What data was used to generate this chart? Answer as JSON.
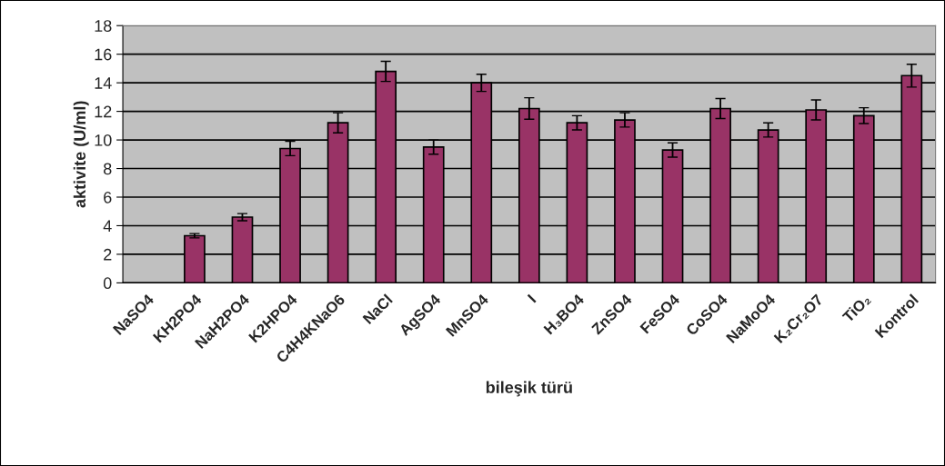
{
  "chart_data": {
    "type": "bar",
    "xlabel": "bileşik türü",
    "ylabel": "aktivite (U/ml)",
    "categories": [
      "NaSO4",
      "KH2PO4",
      "NaH2PO4",
      "K2HPO4",
      "C4H4KNaO6",
      "NaCl",
      "AgSO4",
      "MnSO4",
      "I",
      "H₃BO4",
      "ZnSO4",
      "FeSO4",
      "CoSO4",
      "NaMoO4",
      "K₂Cr₂O7",
      "TiO₂",
      "Kontrol"
    ],
    "values": [
      null,
      3.3,
      4.6,
      9.4,
      11.2,
      14.8,
      9.5,
      14.0,
      12.2,
      11.2,
      11.4,
      9.3,
      12.2,
      10.7,
      12.1,
      11.7,
      14.5
    ],
    "errors": [
      null,
      0.15,
      0.25,
      0.5,
      0.7,
      0.7,
      0.5,
      0.6,
      0.75,
      0.5,
      0.5,
      0.5,
      0.7,
      0.5,
      0.7,
      0.55,
      0.8
    ],
    "color": "#993366",
    "ylim": [
      0,
      18
    ],
    "yticks": [
      0,
      2,
      4,
      6,
      8,
      10,
      12,
      14,
      16,
      18
    ],
    "grid": "y",
    "legend": false
  }
}
